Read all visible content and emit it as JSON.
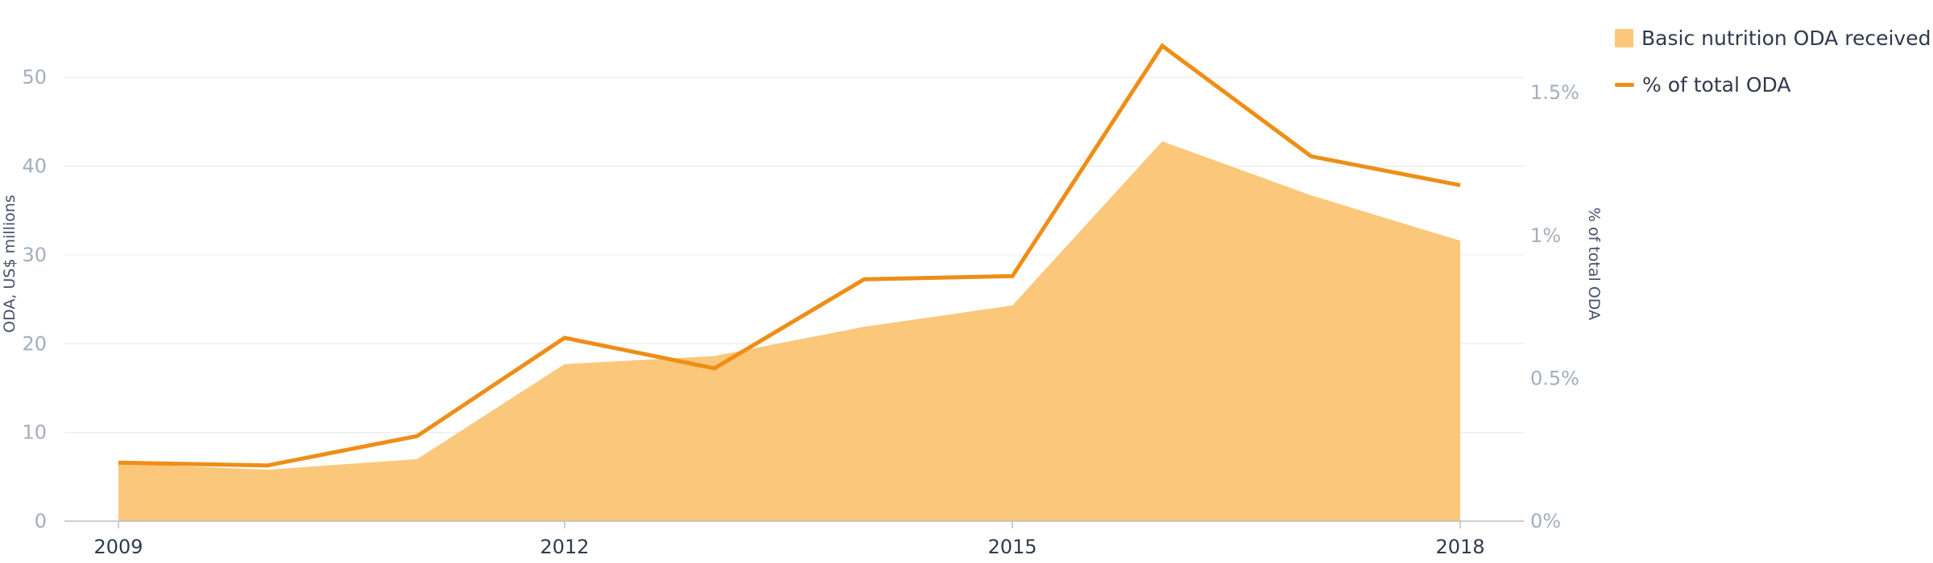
{
  "chart_data": {
    "type": "area",
    "x": [
      "2009",
      "2010",
      "2011",
      "2012",
      "2013",
      "2014",
      "2015",
      "2016",
      "2017",
      "2018"
    ],
    "xticks": [
      "2009",
      "2012",
      "2015",
      "2018"
    ],
    "series": [
      {
        "name": "Basic nutrition ODA received",
        "type": "area",
        "axis": "left",
        "color": "#fbc77a",
        "values": [
          6.5,
          5.8,
          7.0,
          17.7,
          18.6,
          21.9,
          24.3,
          42.8,
          36.7,
          31.6
        ]
      },
      {
        "name": "% of total ODA",
        "type": "line",
        "axis": "right",
        "color": "#ee8e16",
        "values": [
          0.205,
          0.195,
          0.298,
          0.642,
          0.535,
          0.847,
          0.858,
          1.664,
          1.277,
          1.176
        ]
      }
    ],
    "y_left": {
      "label": "ODA, US$ millions",
      "range": [
        0,
        56
      ],
      "ticks": [
        0,
        10,
        20,
        30,
        40,
        50
      ],
      "tick_labels": [
        "0",
        "10",
        "20",
        "30",
        "40",
        "50"
      ]
    },
    "y_right": {
      "label": "% of total ODA",
      "range": [
        0,
        1.74
      ],
      "ticks": [
        0,
        0.5,
        1,
        1.5
      ],
      "tick_labels": [
        "0%",
        "0.5%",
        "1%",
        "1.5%"
      ]
    },
    "grid": true,
    "legend_position": "top-right"
  }
}
